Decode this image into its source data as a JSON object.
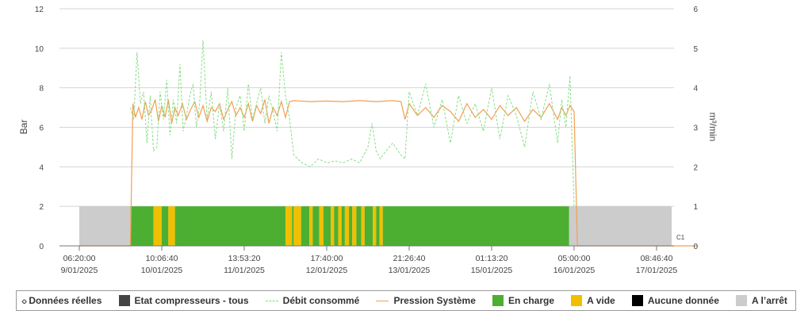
{
  "chart_data": {
    "type": "line",
    "ylabel_left": "Bar",
    "ylabel_right": "m³/min",
    "ylim_left": [
      0,
      12
    ],
    "yticks_left": [
      "0",
      "2",
      "4",
      "6",
      "8",
      "10",
      "12"
    ],
    "ylim_right": [
      0,
      6
    ],
    "yticks_right": [
      "0",
      "1",
      "2",
      "3",
      "4",
      "5",
      "6"
    ],
    "xticks": [
      {
        "time": "06:20:00",
        "date": "9/01/2025"
      },
      {
        "time": "10:06:40",
        "date": "10/01/2025"
      },
      {
        "time": "13:53:20",
        "date": "11/01/2025"
      },
      {
        "time": "17:40:00",
        "date": "12/01/2025"
      },
      {
        "time": "21:26:40",
        "date": "13/01/2025"
      },
      {
        "time": "01:13:20",
        "date": "15/01/2025"
      },
      {
        "time": "05:00:00",
        "date": "16/01/2025"
      },
      {
        "time": "08:46:40",
        "date": "17/01/2025"
      }
    ],
    "compressor_label": "C1",
    "compressor_states": {
      "range": [
        0,
        2
      ],
      "segments": [
        {
          "from": 0.0,
          "to": 0.62,
          "state": "off"
        },
        {
          "from": 0.62,
          "to": 0.9,
          "state": "load"
        },
        {
          "from": 0.9,
          "to": 1.0,
          "state": "idle"
        },
        {
          "from": 1.0,
          "to": 1.08,
          "state": "load"
        },
        {
          "from": 1.08,
          "to": 1.16,
          "state": "idle"
        },
        {
          "from": 1.16,
          "to": 2.5,
          "state": "load"
        },
        {
          "from": 2.5,
          "to": 2.58,
          "state": "idle"
        },
        {
          "from": 2.58,
          "to": 2.6,
          "state": "load"
        },
        {
          "from": 2.6,
          "to": 2.69,
          "state": "idle"
        },
        {
          "from": 2.69,
          "to": 2.79,
          "state": "load"
        },
        {
          "from": 2.79,
          "to": 2.83,
          "state": "idle"
        },
        {
          "from": 2.83,
          "to": 2.91,
          "state": "load"
        },
        {
          "from": 2.91,
          "to": 2.96,
          "state": "idle"
        },
        {
          "from": 2.96,
          "to": 3.05,
          "state": "load"
        },
        {
          "from": 3.05,
          "to": 3.09,
          "state": "idle"
        },
        {
          "from": 3.09,
          "to": 3.14,
          "state": "load"
        },
        {
          "from": 3.14,
          "to": 3.18,
          "state": "idle"
        },
        {
          "from": 3.18,
          "to": 3.22,
          "state": "load"
        },
        {
          "from": 3.22,
          "to": 3.27,
          "state": "idle"
        },
        {
          "from": 3.27,
          "to": 3.31,
          "state": "load"
        },
        {
          "from": 3.31,
          "to": 3.36,
          "state": "idle"
        },
        {
          "from": 3.36,
          "to": 3.42,
          "state": "load"
        },
        {
          "from": 3.42,
          "to": 3.46,
          "state": "idle"
        },
        {
          "from": 3.46,
          "to": 3.56,
          "state": "load"
        },
        {
          "from": 3.56,
          "to": 3.6,
          "state": "idle"
        },
        {
          "from": 3.6,
          "to": 3.64,
          "state": "load"
        },
        {
          "from": 3.64,
          "to": 3.68,
          "state": "idle"
        },
        {
          "from": 3.68,
          "to": 5.94,
          "state": "load"
        },
        {
          "from": 5.94,
          "to": 7.5,
          "state": "off"
        }
      ]
    },
    "series": [
      {
        "name": "Pression Système",
        "axis": "left",
        "style": "solid",
        "color": "#f0a050",
        "x": [
          0.0,
          0.62,
          0.65,
          0.68,
          0.72,
          0.76,
          0.8,
          0.84,
          0.88,
          0.92,
          0.96,
          1.0,
          1.04,
          1.08,
          1.12,
          1.16,
          1.2,
          1.25,
          1.3,
          1.35,
          1.4,
          1.45,
          1.5,
          1.55,
          1.6,
          1.65,
          1.7,
          1.75,
          1.8,
          1.85,
          1.9,
          1.95,
          2.0,
          2.05,
          2.1,
          2.15,
          2.2,
          2.25,
          2.3,
          2.35,
          2.4,
          2.45,
          2.5,
          2.55,
          2.6,
          2.8,
          3.0,
          3.2,
          3.4,
          3.6,
          3.8,
          3.9,
          3.95,
          4.0,
          4.1,
          4.2,
          4.3,
          4.4,
          4.5,
          4.6,
          4.7,
          4.8,
          4.9,
          5.0,
          5.1,
          5.2,
          5.3,
          5.4,
          5.5,
          5.6,
          5.7,
          5.8,
          5.85,
          5.9,
          5.95,
          6.0,
          6.04,
          6.08,
          6.12,
          7.5
        ],
        "values": [
          0.0,
          0.0,
          7.2,
          6.5,
          7.0,
          6.4,
          7.3,
          6.6,
          6.9,
          7.4,
          6.3,
          7.1,
          6.5,
          7.4,
          6.2,
          7.0,
          6.6,
          7.2,
          6.4,
          6.9,
          7.3,
          6.5,
          7.1,
          6.3,
          7.0,
          6.8,
          7.2,
          6.4,
          6.9,
          7.3,
          6.6,
          7.0,
          6.5,
          7.2,
          6.3,
          7.1,
          6.7,
          7.4,
          6.2,
          7.0,
          6.6,
          7.3,
          6.5,
          7.3,
          7.35,
          7.3,
          7.33,
          7.3,
          7.35,
          7.3,
          7.35,
          7.3,
          6.4,
          7.2,
          6.6,
          7.0,
          6.5,
          7.1,
          6.8,
          6.3,
          7.2,
          6.5,
          6.9,
          6.4,
          7.1,
          6.6,
          7.0,
          6.3,
          6.9,
          6.5,
          7.2,
          6.4,
          7.0,
          6.6,
          7.1,
          6.8,
          0.0,
          0.0,
          0.0,
          0.0
        ]
      },
      {
        "name": "Débit consommé",
        "axis": "right",
        "style": "dashed",
        "color": "#88dd88",
        "x": [
          0.62,
          0.66,
          0.7,
          0.74,
          0.78,
          0.82,
          0.86,
          0.9,
          0.94,
          0.98,
          1.02,
          1.06,
          1.1,
          1.14,
          1.18,
          1.22,
          1.26,
          1.3,
          1.34,
          1.38,
          1.42,
          1.46,
          1.5,
          1.55,
          1.6,
          1.65,
          1.7,
          1.75,
          1.8,
          1.85,
          1.9,
          1.95,
          2.0,
          2.05,
          2.1,
          2.15,
          2.2,
          2.25,
          2.3,
          2.35,
          2.4,
          2.45,
          2.5,
          2.55,
          2.6,
          2.7,
          2.8,
          2.9,
          3.0,
          3.1,
          3.2,
          3.3,
          3.4,
          3.5,
          3.55,
          3.6,
          3.65,
          3.7,
          3.8,
          3.9,
          3.95,
          4.0,
          4.1,
          4.2,
          4.3,
          4.4,
          4.5,
          4.6,
          4.7,
          4.8,
          4.9,
          5.0,
          5.1,
          5.2,
          5.3,
          5.4,
          5.5,
          5.6,
          5.7,
          5.8,
          5.85,
          5.9,
          5.95,
          6.0
        ],
        "values": [
          3.5,
          3.2,
          4.9,
          3.6,
          3.9,
          2.6,
          3.8,
          2.4,
          2.5,
          3.9,
          3.2,
          4.2,
          2.8,
          3.7,
          3.1,
          4.6,
          2.9,
          3.3,
          3.8,
          4.1,
          3.0,
          3.6,
          5.2,
          3.2,
          3.9,
          2.7,
          3.6,
          2.9,
          4.0,
          2.2,
          3.5,
          3.8,
          2.9,
          4.1,
          3.2,
          3.6,
          4.0,
          3.1,
          3.8,
          3.4,
          2.9,
          4.9,
          3.8,
          3.2,
          2.3,
          2.1,
          2.0,
          2.2,
          2.1,
          2.15,
          2.1,
          2.2,
          2.1,
          2.5,
          3.1,
          2.4,
          2.2,
          2.35,
          2.6,
          2.3,
          2.2,
          3.9,
          3.3,
          4.1,
          3.0,
          3.7,
          2.6,
          3.8,
          3.1,
          3.6,
          2.9,
          4.0,
          2.7,
          3.8,
          3.3,
          2.5,
          3.9,
          3.2,
          4.1,
          2.6,
          3.7,
          3.0,
          4.3,
          1.0
        ]
      }
    ]
  },
  "legend": {
    "nav_icon": "‹›",
    "items": [
      {
        "label": "Données réelles",
        "kind": "nav"
      },
      {
        "label": "Etat compresseurs - tous",
        "kind": "box",
        "color": "#444444"
      },
      {
        "label": "Débit consommé",
        "kind": "dash",
        "color": "#88dd88"
      },
      {
        "label": "Pression Système",
        "kind": "line",
        "color": "#f0a050"
      },
      {
        "label": "En charge",
        "kind": "box",
        "color": "#4caf32"
      },
      {
        "label": "A vide",
        "kind": "box",
        "color": "#f0c000"
      },
      {
        "label": "Aucune donnée",
        "kind": "box",
        "color": "#000000"
      },
      {
        "label": "A l’arrêt",
        "kind": "box",
        "color": "#cccccc"
      }
    ]
  },
  "colors": {
    "load": "#4caf32",
    "idle": "#f0c000",
    "off": "#cccccc",
    "grid": "#d4d4d4",
    "axis": "#777777"
  }
}
